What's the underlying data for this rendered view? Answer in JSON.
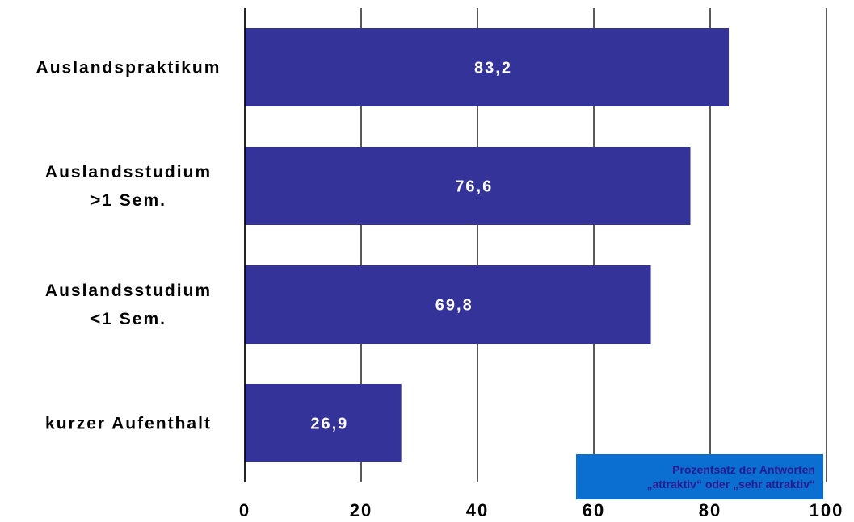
{
  "chart_data": {
    "type": "bar",
    "orientation": "horizontal",
    "categories": [
      [
        "Auslandspraktikum"
      ],
      [
        "Auslandsstudium",
        ">1 Sem."
      ],
      [
        "Auslandsstudium",
        "<1 Sem."
      ],
      [
        "kurzer Aufenthalt"
      ]
    ],
    "values": [
      83.2,
      76.6,
      69.8,
      26.9
    ],
    "value_labels": [
      "83,2",
      "76,6",
      "69,8",
      "26,9"
    ],
    "xlim": [
      0,
      100
    ],
    "xticks": [
      0,
      20,
      40,
      60,
      80,
      100
    ],
    "xtick_labels": [
      "0",
      "20",
      "40",
      "60",
      "80",
      "100"
    ],
    "grid": "vertical",
    "bar_color": "#333399",
    "note": [
      "Prozentsatz der Antworten",
      "„attraktiv“ oder „sehr attraktiv“"
    ],
    "note_color": "#0a6fd1",
    "note_text_color": "#2a1a8f"
  }
}
